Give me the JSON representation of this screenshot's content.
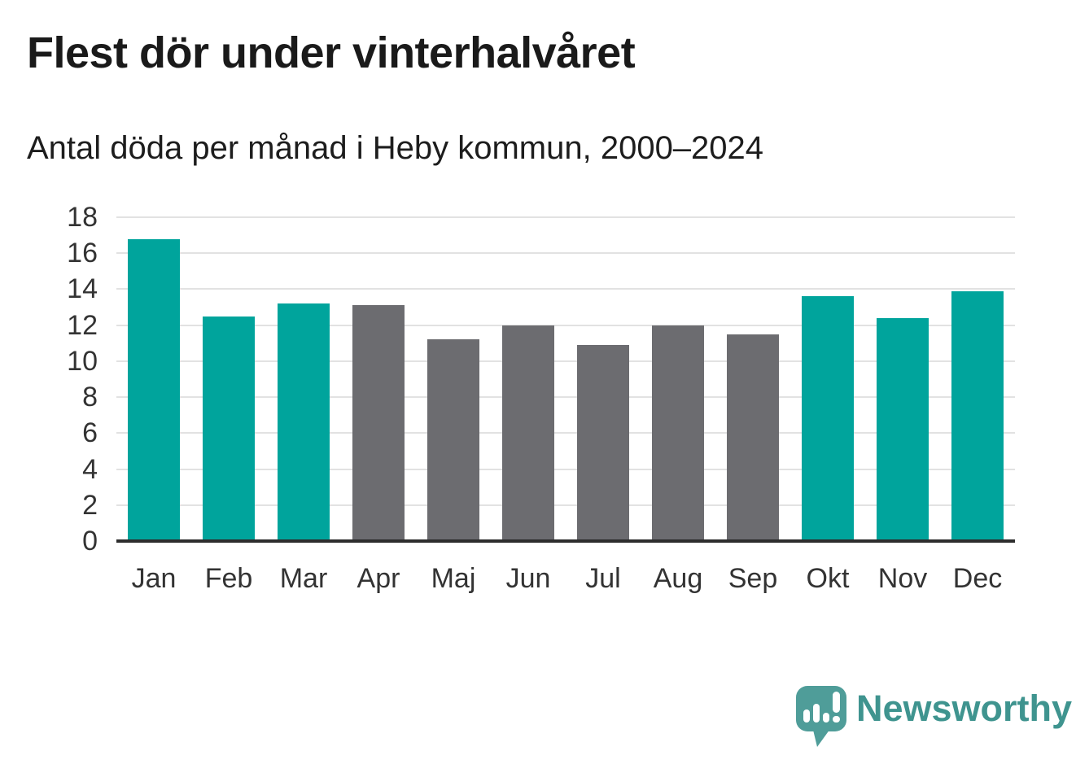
{
  "header": {
    "title": "Flest dör under vinterhalvåret",
    "subtitle": "Antal döda per månad i Heby kommun, 2000–2024"
  },
  "chart_data": {
    "type": "bar",
    "categories": [
      "Jan",
      "Feb",
      "Mar",
      "Apr",
      "Maj",
      "Jun",
      "Jul",
      "Aug",
      "Sep",
      "Okt",
      "Nov",
      "Dec"
    ],
    "values": [
      16.8,
      12.5,
      13.2,
      13.1,
      11.2,
      12.0,
      10.9,
      12.0,
      11.5,
      13.6,
      12.4,
      13.9
    ],
    "bar_groups": [
      "winter",
      "winter",
      "winter",
      "summer",
      "summer",
      "summer",
      "summer",
      "summer",
      "summer",
      "winter",
      "winter",
      "winter"
    ],
    "palette": {
      "winter": "#00a49c",
      "summer": "#6c6c70"
    },
    "ylim": [
      0,
      18
    ],
    "yticks": [
      0,
      2,
      4,
      6,
      8,
      10,
      12,
      14,
      16,
      18
    ],
    "grid": true,
    "legend": "none",
    "xlabel": "",
    "ylabel": ""
  },
  "branding": {
    "logo_text": "Newsworthy",
    "logo_icon": "newsworthy-bubble-chart-icon",
    "brand_color": "#3f948f",
    "icon_color": "#4f9d99"
  },
  "colors": {
    "grid": "#e2e2e2",
    "axis_line": "#2d2d2d",
    "title_text": "#1a1a1a",
    "tick_text": "#333333",
    "background": "#ffffff"
  }
}
